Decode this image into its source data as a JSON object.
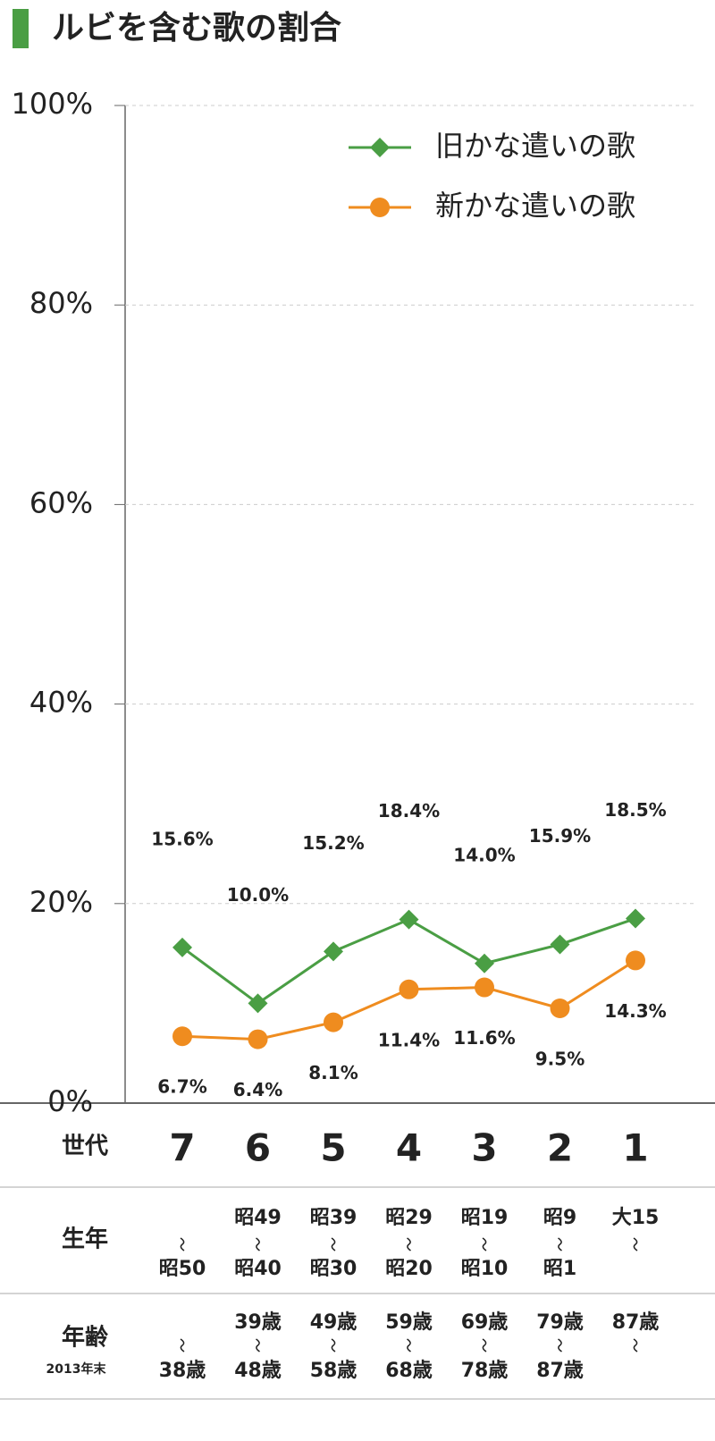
{
  "chart_data": {
    "type": "line",
    "title": "ルビを含む歌の割合",
    "categories": [
      "7",
      "6",
      "5",
      "4",
      "3",
      "2",
      "1"
    ],
    "series": [
      {
        "name": "旧かな遣いの歌",
        "color": "#4a9e44",
        "marker": "diamond",
        "values": [
          15.6,
          10.0,
          15.2,
          18.4,
          14.0,
          15.9,
          18.5
        ],
        "value_labels": [
          "15.6%",
          "10.0%",
          "15.2%",
          "18.4%",
          "14.0%",
          "15.9%",
          "18.5%"
        ]
      },
      {
        "name": "新かな遣いの歌",
        "color": "#ef8c1f",
        "marker": "circle",
        "values": [
          6.7,
          6.4,
          8.1,
          11.4,
          11.6,
          9.5,
          14.3
        ],
        "value_labels": [
          "6.7%",
          "6.4%",
          "8.1%",
          "11.4%",
          "11.6%",
          "9.5%",
          "14.3%"
        ]
      }
    ],
    "ylim": [
      0,
      100
    ],
    "yticks": [
      {
        "value": 0,
        "label": "0%"
      },
      {
        "value": 20,
        "label": "20%"
      },
      {
        "value": 40,
        "label": "40%"
      },
      {
        "value": 60,
        "label": "60%"
      },
      {
        "value": 80,
        "label": "80%"
      },
      {
        "value": 100,
        "label": "100%"
      }
    ],
    "grid": true,
    "legend": "top-right"
  },
  "table": {
    "generation_header": "世代",
    "birth": {
      "header": "生年",
      "top": [
        null,
        "昭49",
        "昭39",
        "昭29",
        "昭19",
        "昭9",
        "大15"
      ],
      "bottom": [
        "昭50",
        "昭40",
        "昭30",
        "昭20",
        "昭10",
        "昭1",
        null
      ]
    },
    "age": {
      "header": "年齢",
      "note": "2013年末",
      "top": [
        null,
        "39歳",
        "49歳",
        "59歳",
        "69歳",
        "79歳",
        "87歳"
      ],
      "bottom": [
        "38歳",
        "48歳",
        "58歳",
        "68歳",
        "78歳",
        "87歳",
        null
      ]
    }
  }
}
